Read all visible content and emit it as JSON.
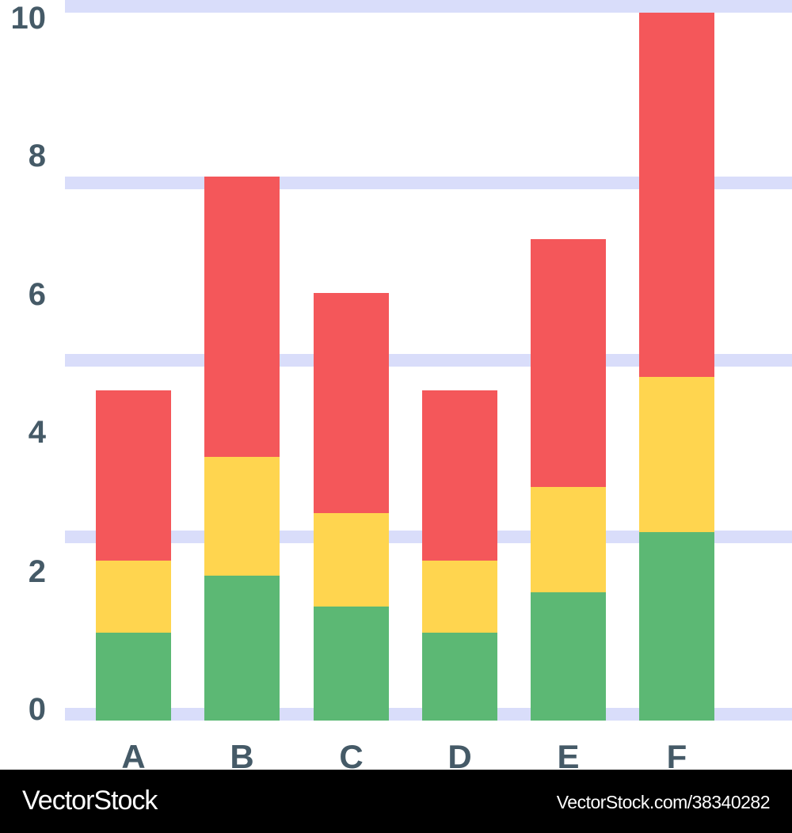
{
  "chart_data": {
    "type": "bar",
    "stacked": true,
    "title": "",
    "xlabel": "",
    "ylabel": "",
    "ylim": [
      0,
      10
    ],
    "y_ticks": [
      "0",
      "2",
      "4",
      "6",
      "8",
      "10"
    ],
    "grid": true,
    "legend": "none",
    "categories": [
      "A",
      "B",
      "C",
      "D",
      "E",
      "F"
    ],
    "series": [
      {
        "name": "green",
        "color": "#5cb874",
        "values": [
          1.24,
          2.05,
          1.61,
          1.24,
          1.81,
          2.66
        ]
      },
      {
        "name": "yellow",
        "color": "#ffd54f",
        "values": [
          1.02,
          1.67,
          1.32,
          1.02,
          1.49,
          2.19
        ]
      },
      {
        "name": "red",
        "color": "#f4575a",
        "values": [
          2.4,
          3.96,
          3.11,
          2.4,
          3.5,
          5.15
        ]
      }
    ]
  },
  "colors": {
    "grid": "#d9ddfa",
    "axis_text": "#455a67",
    "background": "#ffffff"
  },
  "footer": {
    "brand": "VectorStock",
    "reference": "VectorStock.com/38340282"
  }
}
